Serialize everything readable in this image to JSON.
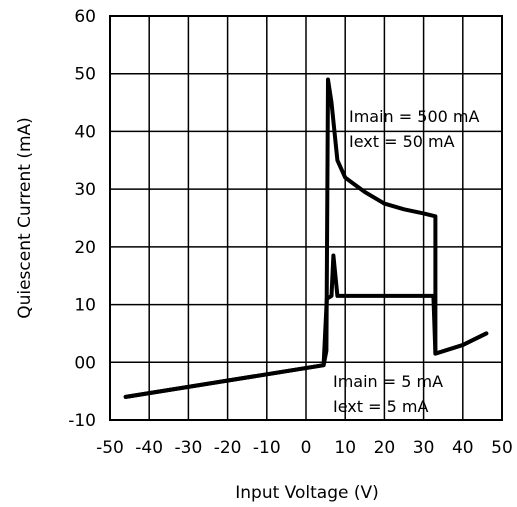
{
  "chart_data": {
    "type": "line",
    "title": "",
    "xlabel": "Input Voltage (V)",
    "ylabel": "Quiescent Current (mA)",
    "xlim": [
      -50,
      50
    ],
    "ylim": [
      -10,
      60
    ],
    "grid": true,
    "x_ticks": [
      -50,
      -40,
      -30,
      -20,
      -10,
      0,
      10,
      20,
      30,
      40,
      50
    ],
    "x_tick_labels": [
      "-50",
      "-40",
      "-30",
      "-20",
      "-10",
      "0",
      "10",
      "20",
      "30",
      "40",
      "50"
    ],
    "y_ticks": [
      -10,
      0,
      10,
      20,
      30,
      40,
      50,
      60
    ],
    "y_tick_labels": [
      "-10",
      "00",
      "10",
      "20",
      "30",
      "40",
      "50",
      "60"
    ],
    "series": [
      {
        "condition": "Imain = 500 mA, Iext = 50 mA",
        "color": "#000000",
        "points": [
          [
            -46,
            -6
          ],
          [
            4.5,
            -0.5
          ],
          [
            5.2,
            2
          ],
          [
            5.6,
            49
          ],
          [
            6.5,
            45
          ],
          [
            8,
            35
          ],
          [
            10,
            32
          ],
          [
            15,
            29.5
          ],
          [
            20,
            27.5
          ],
          [
            25,
            26.5
          ],
          [
            30,
            25.8
          ],
          [
            33,
            25.3
          ],
          [
            33,
            1.5
          ],
          [
            40,
            3
          ],
          [
            46,
            5
          ]
        ]
      },
      {
        "condition": "Imain = 5 mA, Iext = 5 mA",
        "color": "#000000",
        "points": [
          [
            -46,
            -6
          ],
          [
            4.5,
            -0.5
          ],
          [
            5.3,
            11
          ],
          [
            6.5,
            11.5
          ],
          [
            7,
            18.5
          ],
          [
            8,
            11.5
          ],
          [
            20,
            11.5
          ],
          [
            32.5,
            11.5
          ],
          [
            33,
            1.5
          ],
          [
            40,
            3
          ],
          [
            46,
            5
          ]
        ]
      }
    ],
    "annotations": [
      {
        "lines": [
          "Imain = 500 mA",
          "Iext = 50 mA"
        ],
        "anchor": [
          8,
          40
        ]
      },
      {
        "lines": [
          "Imain = 5 mA",
          "Iext = 5 mA"
        ],
        "anchor": [
          5,
          -6
        ]
      }
    ]
  }
}
